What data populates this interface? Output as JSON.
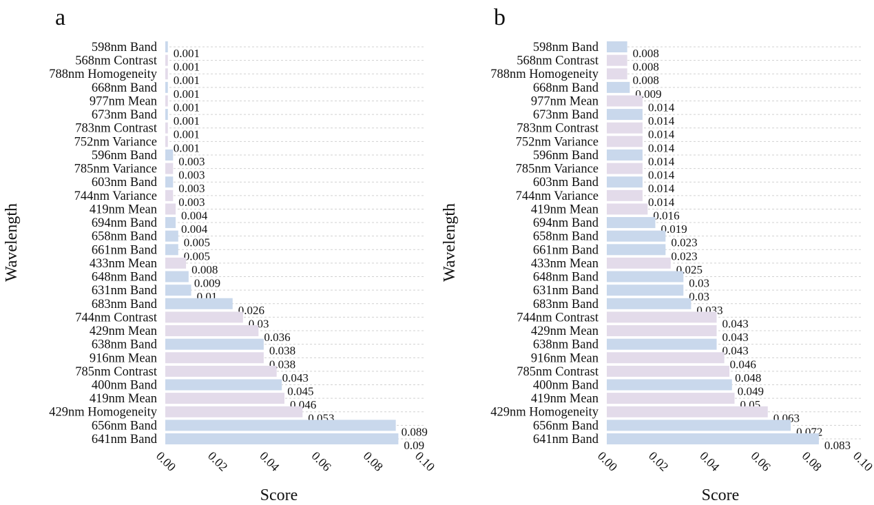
{
  "colors": {
    "band": "#c9d8ec",
    "other": "#e3dbea",
    "grid": "#d0d0d0"
  },
  "chart_data": [
    {
      "panel": "a",
      "type": "bar",
      "orientation": "horizontal",
      "xlabel": "Score",
      "ylabel": "Wavelength",
      "xlim": [
        0,
        0.1
      ],
      "xticks": [
        "0.00",
        "0.02",
        "0.04",
        "0.06",
        "0.08",
        "0.10"
      ],
      "grid": "horizontal dashed",
      "categories": [
        "598nm Band",
        "568nm Contrast",
        "788nm Homogeneity",
        "668nm Band",
        "977nm Mean",
        "673nm Band",
        "783nm Contrast",
        "752nm Variance",
        "596nm Band",
        "785nm Variance",
        "603nm Band",
        "744nm Variance",
        "419nm Mean",
        "694nm Band",
        "658nm Band",
        "661nm Band",
        "433nm Mean",
        "648nm Band",
        "631nm Band",
        "683nm Band",
        "744nm Contrast",
        "429nm Mean",
        "638nm Band",
        "916nm Mean",
        "785nm Contrast",
        "400nm Band",
        "419nm Mean",
        "429nm Homogeneity",
        "656nm Band",
        "641nm Band"
      ],
      "values": [
        0.001,
        0.001,
        0.001,
        0.001,
        0.001,
        0.001,
        0.001,
        0.001,
        0.003,
        0.003,
        0.003,
        0.003,
        0.004,
        0.004,
        0.005,
        0.005,
        0.008,
        0.009,
        0.01,
        0.026,
        0.03,
        0.036,
        0.038,
        0.038,
        0.043,
        0.045,
        0.046,
        0.053,
        0.089,
        0.09
      ],
      "labels": [
        "0.001",
        "0.001",
        "0.001",
        "0.001",
        "0.001",
        "0.001",
        "0.001",
        "0.001",
        "0.003",
        "0.003",
        "0.003",
        "0.003",
        "0.004",
        "0.004",
        "0.005",
        "0.005",
        "0.008",
        "0.009",
        "0.01",
        "0.026",
        "0.03",
        "0.036",
        "0.038",
        "0.038",
        "0.043",
        "0.045",
        "0.046",
        "0.053",
        "0.089",
        "0.09"
      ]
    },
    {
      "panel": "b",
      "type": "bar",
      "orientation": "horizontal",
      "xlabel": "Score",
      "ylabel": "Wavelength",
      "xlim": [
        0,
        0.1
      ],
      "xticks": [
        "0.00",
        "0.02",
        "0.04",
        "0.06",
        "0.08",
        "0.10"
      ],
      "grid": "horizontal dashed",
      "categories": [
        "598nm Band",
        "568nm Contrast",
        "788nm Homogeneity",
        "668nm Band",
        "977nm Mean",
        "673nm Band",
        "783nm Contrast",
        "752nm Variance",
        "596nm Band",
        "785nm Variance",
        "603nm Band",
        "744nm Variance",
        "419nm Mean",
        "694nm Band",
        "658nm Band",
        "661nm Band",
        "433nm Mean",
        "648nm Band",
        "631nm Band",
        "683nm Band",
        "744nm Contrast",
        "429nm Mean",
        "638nm Band",
        "916nm Mean",
        "785nm Contrast",
        "400nm Band",
        "419nm Mean",
        "429nm Homogeneity",
        "656nm Band",
        "641nm Band"
      ],
      "values": [
        0.008,
        0.008,
        0.008,
        0.009,
        0.014,
        0.014,
        0.014,
        0.014,
        0.014,
        0.014,
        0.014,
        0.014,
        0.016,
        0.019,
        0.023,
        0.023,
        0.025,
        0.03,
        0.03,
        0.033,
        0.043,
        0.043,
        0.043,
        0.046,
        0.048,
        0.049,
        0.05,
        0.063,
        0.072,
        0.083
      ],
      "labels": [
        "0.008",
        "0.008",
        "0.008",
        "0.009",
        "0.014",
        "0.014",
        "0.014",
        "0.014",
        "0.014",
        "0.014",
        "0.014",
        "0.014",
        "0.016",
        "0.019",
        "0.023",
        "0.023",
        "0.025",
        "0.03",
        "0.03",
        "0.033",
        "0.043",
        "0.043",
        "0.043",
        "0.046",
        "0.048",
        "0.049",
        "0.05",
        "0.063",
        "0.072",
        "0.083"
      ]
    }
  ]
}
